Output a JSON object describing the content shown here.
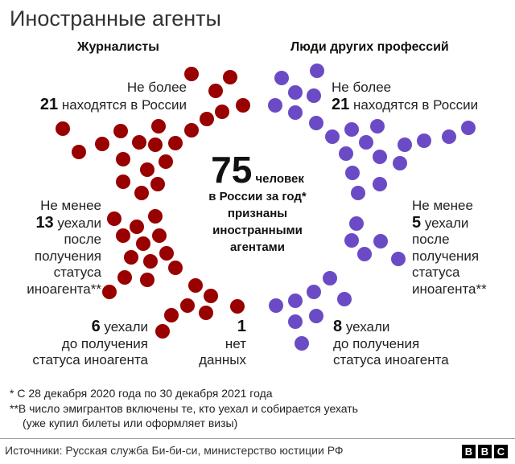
{
  "title": "Иностранные агенты",
  "colors": {
    "journalists": "#990000",
    "others": "#6b4bc5"
  },
  "journalists": {
    "header": "Журналисты",
    "in_russia": {
      "line1": "Не более",
      "count": "21",
      "text": "находятся в России"
    },
    "left_after": {
      "line1": "Не менее",
      "count": "13",
      "text": "уехали",
      "lines": [
        "после",
        "получения",
        "статуса",
        "иноагента**"
      ]
    },
    "left_before": {
      "count": "6",
      "text": "уехали",
      "lines": [
        "до получения",
        "статуса иноагента"
      ]
    },
    "no_data": {
      "count": "1",
      "lines": [
        "нет",
        "данных"
      ]
    }
  },
  "others": {
    "header": "Люди других профессий",
    "in_russia": {
      "line1": "Не более",
      "count": "21",
      "text": "находятся в России"
    },
    "left_after": {
      "line1": "Не менее",
      "count": "5",
      "text": "уехали",
      "lines": [
        "после",
        "получения",
        "статуса",
        "иноагента**"
      ]
    },
    "left_before": {
      "count": "8",
      "text": "уехали",
      "lines": [
        "до получения",
        "статуса иноагента"
      ]
    }
  },
  "center": {
    "total": "75",
    "unit": "человек",
    "lines": [
      "в России за год*",
      "признаны",
      "иностранными",
      "агентами"
    ]
  },
  "notes": [
    "*  С 28 декабря 2020 года по 30 декабря 2021 года",
    "**В число эмигрантов включены те, кто уехал и собирается уехать",
    "(уже купил билеты или оформляет визы)"
  ],
  "source": "Источники: Русская служба Би-би-си, министерство юстиции РФ",
  "logo": "BBC"
}
